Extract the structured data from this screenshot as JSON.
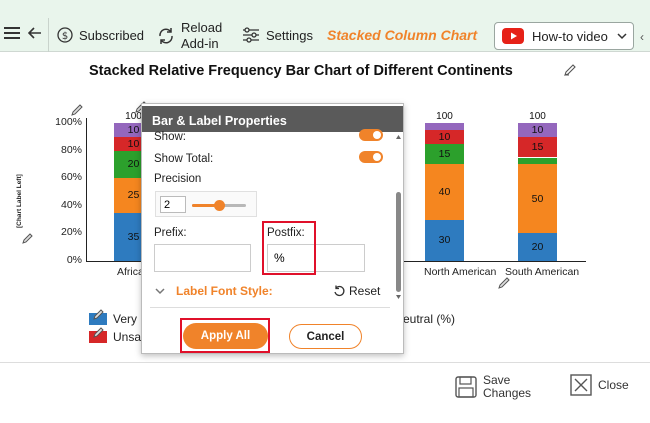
{
  "toolbar": {
    "subscribed_label": "Subscribed",
    "reload_line1": "Reload",
    "reload_line2": "Add-in",
    "settings_label": "Settings",
    "chart_type": "Stacked Column Chart",
    "howto_label": "How-to video",
    "scroll_glyph": "‹"
  },
  "chart": {
    "title": "Stacked Relative Frequency Bar Chart of Different Continents",
    "y_axis_label": "[Chart Label Left]",
    "y_ticks": [
      "100%",
      "80%",
      "60%",
      "40%",
      "20%",
      "0%"
    ],
    "colors": {
      "blue": "#2e7bbf",
      "orange": "#f5861f",
      "green": "#2ca02c",
      "red": "#d62728",
      "purple": "#9467bd"
    }
  },
  "chart_data": {
    "type": "bar",
    "stacked": true,
    "title": "Stacked Relative Frequency Bar Chart of Different Continents",
    "ylabel": "[Chart Label Left]",
    "ylim": [
      0,
      100
    ],
    "categories": [
      "African",
      "North American",
      "South American"
    ],
    "category_labels_visible": [
      "Africa",
      "North American",
      "South American"
    ],
    "totals": [
      100,
      100,
      100
    ],
    "series": [
      {
        "color": "#2e7bbf",
        "values": [
          35,
          30,
          20
        ],
        "labels": [
          "35",
          "30",
          "20"
        ]
      },
      {
        "color": "#f5861f",
        "values": [
          25,
          40,
          50
        ],
        "labels": [
          "25",
          "40",
          "50"
        ]
      },
      {
        "color": "#2ca02c",
        "values": [
          20,
          15,
          5
        ],
        "labels": [
          "20",
          "15",
          ""
        ]
      },
      {
        "color": "#d62728",
        "values": [
          10,
          10,
          15
        ],
        "labels": [
          "10",
          "10",
          "15"
        ]
      },
      {
        "color": "#9467bd",
        "values": [
          10,
          5,
          10
        ],
        "labels": [
          "10",
          "",
          "10"
        ]
      }
    ]
  },
  "legend": {
    "item1": "Very",
    "item2": "Unsa",
    "item3": "eutral (%)"
  },
  "dialog": {
    "title": "Bar & Label Properties",
    "show_label": "Show:",
    "show_total_label": "Show Total:",
    "precision_label": "Precision",
    "precision_value": "2",
    "prefix_label": "Prefix:",
    "prefix_value": "",
    "postfix_label": "Postfix:",
    "postfix_value": "%",
    "font_style_label": "Label Font Style:",
    "reset_label": "Reset",
    "apply_label": "Apply All",
    "cancel_label": "Cancel",
    "precision_fraction": 0.5
  },
  "footer": {
    "save_line1": "Save",
    "save_line2": "Changes",
    "close_label": "Close"
  }
}
